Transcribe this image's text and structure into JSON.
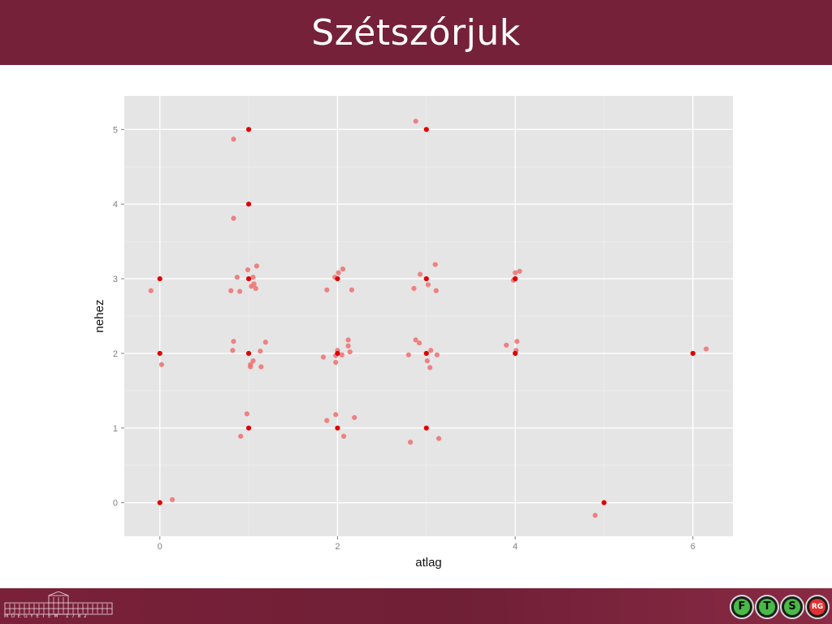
{
  "slide": {
    "title": "Szétszórjuk"
  },
  "footer": {
    "university_text": "MŰEGYETEM 1782",
    "badges": [
      "F",
      "T",
      "S",
      "RG"
    ]
  },
  "colors": {
    "header": "#75213a",
    "panel": "#e5e5e5",
    "grid": "#ffffff",
    "jitter_point": "#f07070",
    "exact_point": "#e00000"
  },
  "chart_data": {
    "type": "scatter",
    "xlabel": "atlag",
    "ylabel": "nehez",
    "xlim": [
      -0.4,
      6.45
    ],
    "ylim": [
      -0.45,
      5.45
    ],
    "x_ticks": [
      0,
      2,
      4,
      6
    ],
    "y_ticks": [
      0,
      1,
      2,
      3,
      4,
      5
    ],
    "grid": true,
    "legend": "none",
    "series": [
      {
        "points": [
          [
            -0.1,
            2.84
          ],
          [
            0.02,
            1.85
          ],
          [
            0.14,
            0.04
          ],
          [
            0.83,
            4.87
          ],
          [
            0.83,
            3.81
          ],
          [
            0.8,
            2.84
          ],
          [
            0.87,
            3.02
          ],
          [
            0.9,
            2.83
          ],
          [
            0.99,
            3.12
          ],
          [
            1.05,
            3.02
          ],
          [
            1.06,
            2.93
          ],
          [
            1.03,
            2.9
          ],
          [
            1.08,
            2.87
          ],
          [
            1.09,
            3.17
          ],
          [
            0.83,
            2.16
          ],
          [
            0.82,
            2.04
          ],
          [
            1.02,
            1.85
          ],
          [
            1.02,
            1.82
          ],
          [
            1.05,
            1.9
          ],
          [
            1.13,
            2.03
          ],
          [
            1.19,
            2.15
          ],
          [
            1.14,
            1.82
          ],
          [
            0.98,
            1.19
          ],
          [
            0.91,
            0.89
          ],
          [
            1.97,
            3.02
          ],
          [
            2.01,
            3.08
          ],
          [
            1.88,
            2.85
          ],
          [
            2.06,
            3.13
          ],
          [
            2.16,
            2.85
          ],
          [
            1.84,
            1.95
          ],
          [
            1.98,
            1.97
          ],
          [
            2.0,
            2.04
          ],
          [
            2.05,
            1.98
          ],
          [
            1.98,
            1.88
          ],
          [
            2.12,
            2.18
          ],
          [
            2.12,
            2.1
          ],
          [
            2.14,
            2.02
          ],
          [
            1.98,
            1.18
          ],
          [
            1.88,
            1.1
          ],
          [
            2.19,
            1.14
          ],
          [
            2.07,
            0.89
          ],
          [
            2.88,
            5.11
          ],
          [
            2.93,
            3.06
          ],
          [
            2.86,
            2.87
          ],
          [
            3.02,
            2.92
          ],
          [
            3.1,
            3.19
          ],
          [
            3.11,
            2.84
          ],
          [
            2.88,
            2.18
          ],
          [
            2.92,
            2.14
          ],
          [
            2.8,
            1.98
          ],
          [
            3.05,
            2.04
          ],
          [
            3.01,
            1.9
          ],
          [
            3.04,
            1.81
          ],
          [
            3.12,
            1.98
          ],
          [
            2.82,
            0.81
          ],
          [
            3.14,
            0.86
          ],
          [
            4.0,
            3.08
          ],
          [
            4.05,
            3.1
          ],
          [
            3.98,
            2.98
          ],
          [
            3.9,
            2.11
          ],
          [
            4.02,
            2.16
          ],
          [
            4.01,
            2.04
          ],
          [
            4.9,
            -0.17
          ],
          [
            6.15,
            2.06
          ]
        ]
      },
      {
        "points": [
          [
            0,
            0
          ],
          [
            0,
            2
          ],
          [
            0,
            3
          ],
          [
            1,
            1
          ],
          [
            1,
            2
          ],
          [
            1,
            3
          ],
          [
            1,
            4
          ],
          [
            1,
            5
          ],
          [
            2,
            1
          ],
          [
            2,
            2
          ],
          [
            2,
            3
          ],
          [
            3,
            1
          ],
          [
            3,
            2
          ],
          [
            3,
            3
          ],
          [
            3,
            5
          ],
          [
            4,
            2
          ],
          [
            4,
            3
          ],
          [
            5,
            0
          ],
          [
            6,
            2
          ]
        ]
      }
    ]
  }
}
